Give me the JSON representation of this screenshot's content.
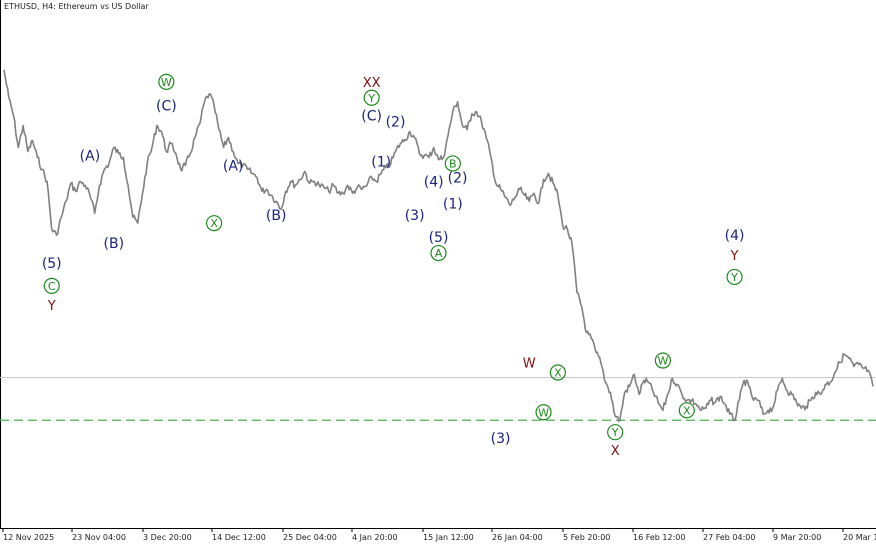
{
  "header": {
    "title": "ETHUSD, H4:  Ethereum vs US Dollar"
  },
  "colors": {
    "price_line": "#808080",
    "navy": "#1a237e",
    "green": "#1b8a1b",
    "maroon": "#7a1010",
    "horizontal_line": "#c8c8c8",
    "dashed_line": "#4caf50"
  },
  "chart_data": {
    "type": "line",
    "series": [
      {
        "values": [
          3620,
          3480,
          3390,
          3230,
          3340,
          3210,
          3265,
          3180,
          3120,
          3060,
          2820,
          2790,
          2880,
          2960,
          3050,
          3010,
          3060,
          3040,
          2990,
          2900,
          3040,
          3120,
          3150,
          3230,
          3200,
          3180,
          3040,
          2880,
          2850,
          3000,
          3150,
          3230,
          3340,
          3310,
          3210,
          3250,
          3200,
          3120,
          3140,
          3200,
          3280,
          3350,
          3460,
          3500,
          3440,
          3320,
          3230,
          3280,
          3210,
          3150,
          3140,
          3120,
          3100,
          3080,
          3010,
          3020,
          2990,
          2960,
          2920,
          3010,
          3060,
          3040,
          3070,
          3110,
          3050,
          3060,
          3040,
          3030,
          3010,
          3040,
          3000,
          3000,
          3040,
          3000,
          3030,
          3020,
          3040,
          3080,
          3060,
          3100,
          3130,
          3150,
          3210,
          3250,
          3270,
          3310,
          3280,
          3200,
          3190,
          3180,
          3230,
          3170,
          3180,
          3290,
          3410,
          3460,
          3340,
          3320,
          3400,
          3410,
          3360,
          3280,
          3180,
          3050,
          3020,
          2980,
          2940,
          2980,
          3020,
          2990,
          2960,
          3000,
          2950,
          3070,
          3100,
          3050,
          2990,
          2840,
          2820,
          2740,
          2500,
          2430,
          2300,
          2270,
          2200,
          2150,
          2050,
          2000,
          1880,
          1860,
          2000,
          2030,
          2090,
          1990,
          2060,
          2050,
          2000,
          1950,
          1910,
          1990,
          2070,
          2040,
          1990,
          1960,
          1960,
          1940,
          1910,
          1920,
          1960,
          1950,
          1980,
          1940,
          1890,
          1860,
          1960,
          2060,
          2030,
          1960,
          1960,
          1890,
          1910,
          1920,
          2010,
          2070,
          2010,
          1990,
          1950,
          1920,
          1930,
          1960,
          2000,
          1990,
          2040,
          2050,
          2100,
          2150,
          2190,
          2170,
          2130,
          2140,
          2120,
          2110,
          2030
        ]
      }
    ],
    "x_tick_labels": [
      "12 Nov 2025",
      "23 Nov 04:00",
      "3 Dec 20:00",
      "14 Dec 12:00",
      "25 Dec 04:00",
      "4 Jan 20:00",
      "15 Jan 12:00",
      "26 Jan 04:00",
      "5 Feb 20:00",
      "16 Feb 12:00",
      "27 Feb 04:00",
      "9 Mar 20:00",
      "20 Mar 12:00"
    ],
    "reference_lines": [
      {
        "style": "solid",
        "y": 2075
      },
      {
        "style": "dashed",
        "y": 1860
      }
    ],
    "annotations": [
      {
        "text": "(5)",
        "kind": "text",
        "color": "navy",
        "i": 10,
        "y": 2650
      },
      {
        "text": "C",
        "kind": "circled",
        "color": "green",
        "i": 10,
        "y": 2535
      },
      {
        "text": "Y",
        "kind": "text",
        "color": "maroon",
        "i": 10,
        "y": 2440
      },
      {
        "text": "(A)",
        "kind": "text",
        "color": "navy",
        "i": 18,
        "y": 3190
      },
      {
        "text": "(B)",
        "kind": "text",
        "color": "navy",
        "i": 23,
        "y": 2750
      },
      {
        "text": "W",
        "kind": "circled",
        "color": "green",
        "i": 34,
        "y": 3560
      },
      {
        "text": "(C)",
        "kind": "text",
        "color": "navy",
        "i": 34,
        "y": 3440
      },
      {
        "text": "(A)",
        "kind": "text",
        "color": "navy",
        "i": 48,
        "y": 3140
      },
      {
        "text": "X",
        "kind": "circled",
        "color": "green",
        "i": 44,
        "y": 2850
      },
      {
        "text": "(B)",
        "kind": "text",
        "color": "navy",
        "i": 57,
        "y": 2890
      },
      {
        "text": "XX",
        "kind": "text",
        "color": "maroon",
        "i": 77,
        "y": 3560
      },
      {
        "text": "Y",
        "kind": "circled",
        "color": "green",
        "i": 77,
        "y": 3480
      },
      {
        "text": "(C)",
        "kind": "text",
        "color": "navy",
        "i": 77,
        "y": 3390
      },
      {
        "text": "(2)",
        "kind": "text",
        "color": "navy",
        "i": 82,
        "y": 3360
      },
      {
        "text": "(1)",
        "kind": "text",
        "color": "navy",
        "i": 79,
        "y": 3160
      },
      {
        "text": "(4)",
        "kind": "text",
        "color": "navy",
        "i": 90,
        "y": 3060
      },
      {
        "text": "(3)",
        "kind": "text",
        "color": "navy",
        "i": 86,
        "y": 2890
      },
      {
        "text": "B",
        "kind": "circled",
        "color": "green",
        "i": 94,
        "y": 3150
      },
      {
        "text": "(2)",
        "kind": "text",
        "color": "navy",
        "i": 95,
        "y": 3080
      },
      {
        "text": "(1)",
        "kind": "text",
        "color": "navy",
        "i": 94,
        "y": 2950
      },
      {
        "text": "(5)",
        "kind": "text",
        "color": "navy",
        "i": 91,
        "y": 2780
      },
      {
        "text": "A",
        "kind": "circled",
        "color": "green",
        "i": 91,
        "y": 2700
      },
      {
        "text": "W",
        "kind": "text",
        "color": "maroon",
        "i": 110,
        "y": 2150
      },
      {
        "text": "X",
        "kind": "circled",
        "color": "green",
        "i": 116,
        "y": 2100
      },
      {
        "text": "W",
        "kind": "circled",
        "color": "green",
        "i": 113,
        "y": 1900
      },
      {
        "text": "(3)",
        "kind": "text",
        "color": "navy",
        "i": 104,
        "y": 1770
      },
      {
        "text": "Y",
        "kind": "circled",
        "color": "green",
        "i": 128,
        "y": 1800
      },
      {
        "text": "X",
        "kind": "text",
        "color": "maroon",
        "i": 128,
        "y": 1710
      },
      {
        "text": "W",
        "kind": "circled",
        "color": "green",
        "i": 138,
        "y": 2160
      },
      {
        "text": "X",
        "kind": "circled",
        "color": "green",
        "i": 143,
        "y": 1910
      },
      {
        "text": "(4)",
        "kind": "text",
        "color": "navy",
        "i": 153,
        "y": 2790
      },
      {
        "text": "Y",
        "kind": "text",
        "color": "maroon",
        "i": 153,
        "y": 2690
      },
      {
        "text": "Y",
        "kind": "circled",
        "color": "green",
        "i": 153,
        "y": 2580
      }
    ],
    "grid": false
  }
}
